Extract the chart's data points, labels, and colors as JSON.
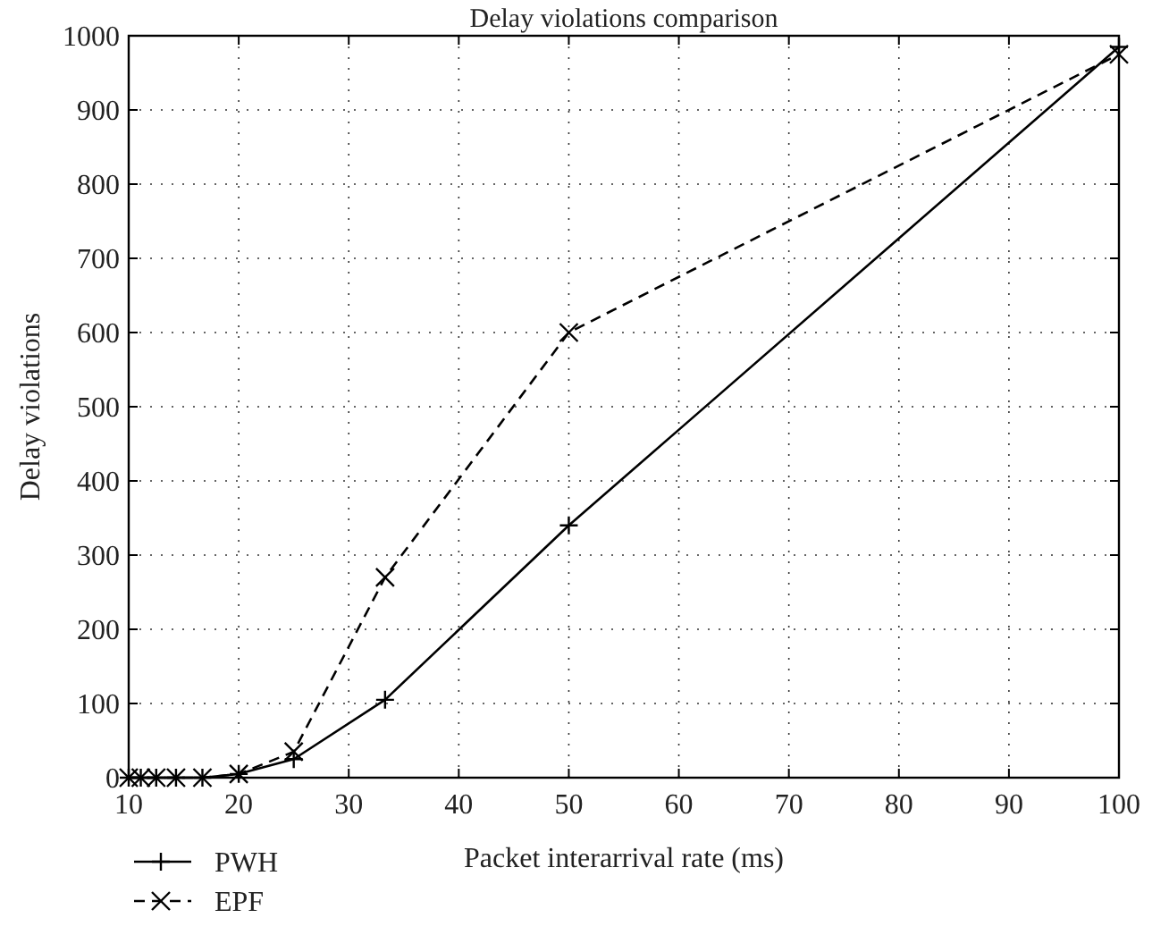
{
  "chart_data": {
    "type": "line",
    "title": "Delay violations comparison",
    "xlabel": "Packet interarrival rate (ms)",
    "ylabel": "Delay violations",
    "x": [
      10,
      11.1,
      12.5,
      14.3,
      16.7,
      20,
      25,
      33.3,
      50,
      100
    ],
    "series": [
      {
        "name": "PWH",
        "color": "#000000",
        "marker": "cross",
        "line_style": "solid",
        "values": [
          0,
          0,
          0,
          0,
          0,
          5,
          25,
          105,
          340,
          985
        ]
      },
      {
        "name": "EPF",
        "color": "#000000",
        "marker": "x",
        "line_style": "dashed",
        "values": [
          0,
          0,
          0,
          0,
          0,
          5,
          35,
          270,
          600,
          975
        ]
      }
    ],
    "xlim": [
      10,
      100
    ],
    "xticks": [
      10,
      20,
      30,
      40,
      50,
      60,
      70,
      80,
      90,
      100
    ],
    "ylim": [
      0,
      1000
    ],
    "yticks": [
      0,
      100,
      200,
      300,
      400,
      500,
      600,
      700,
      800,
      900,
      1000
    ],
    "grid": true,
    "legend": "bottom left"
  }
}
